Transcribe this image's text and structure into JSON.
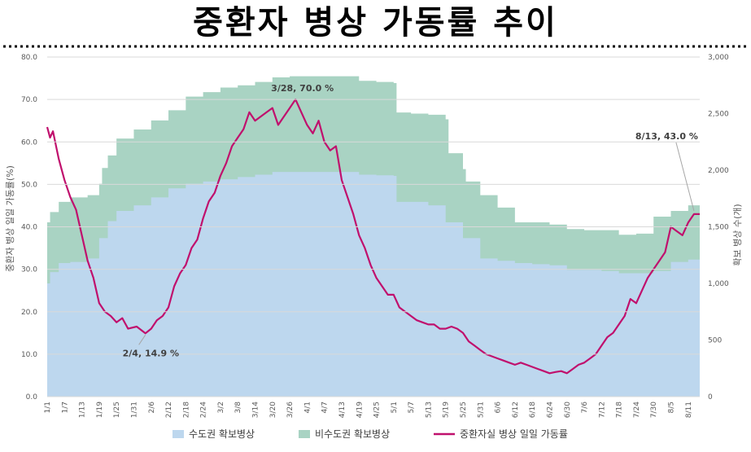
{
  "title": "중환자 병상 가동률 추이",
  "chart_data": {
    "type": "area+line",
    "ylabel_left": "중환자 병상 일일 가동률(%)",
    "ylabel_right": "확보 병상 수(개)",
    "ylim_left": [
      0,
      80
    ],
    "ylim_right": [
      0,
      3000
    ],
    "yticks_left": [
      "0.0",
      "10.0",
      "20.0",
      "30.0",
      "40.0",
      "50.0",
      "60.0",
      "70.0",
      "80.0"
    ],
    "yticks_right": [
      "0",
      "500",
      "1,000",
      "1,500",
      "2,000",
      "2,500",
      "3,000"
    ],
    "xticks": [
      "1/1",
      "1/7",
      "1/13",
      "1/19",
      "1/25",
      "1/31",
      "2/6",
      "2/12",
      "2/18",
      "2/24",
      "3/2",
      "3/8",
      "3/14",
      "3/20",
      "3/26",
      "4/1",
      "4/7",
      "4/13",
      "4/19",
      "4/25",
      "5/1",
      "5/7",
      "5/13",
      "5/19",
      "5/25",
      "5/31",
      "6/6",
      "6/12",
      "6/18",
      "6/24",
      "6/30",
      "7/6",
      "7/12",
      "7/18",
      "7/24",
      "7/30",
      "8/5",
      "8/11"
    ],
    "legend": [
      "수도권 확보병상",
      "비수도권 확보병상",
      "중환자실 병상 일일 가동률"
    ],
    "colors": {
      "capital": "#bdd7ee",
      "noncapital": "#a9d3c3",
      "line": "#c0106d"
    },
    "capital_beds": [
      [
        "1/1",
        1000
      ],
      [
        "1/2",
        1100
      ],
      [
        "1/5",
        1180
      ],
      [
        "1/9",
        1190
      ],
      [
        "1/15",
        1220
      ],
      [
        "1/19",
        1400
      ],
      [
        "1/22",
        1550
      ],
      [
        "1/25",
        1640
      ],
      [
        "1/31",
        1690
      ],
      [
        "2/6",
        1760
      ],
      [
        "2/12",
        1840
      ],
      [
        "2/18",
        1880
      ],
      [
        "2/24",
        1900
      ],
      [
        "3/2",
        1920
      ],
      [
        "3/8",
        1940
      ],
      [
        "3/14",
        1960
      ],
      [
        "3/20",
        1985
      ],
      [
        "3/26",
        1985
      ],
      [
        "4/1",
        1985
      ],
      [
        "4/7",
        1985
      ],
      [
        "4/13",
        1985
      ],
      [
        "4/19",
        1960
      ],
      [
        "4/25",
        1955
      ],
      [
        "5/1",
        1950
      ],
      [
        "5/2",
        1720
      ],
      [
        "5/7",
        1720
      ],
      [
        "5/13",
        1690
      ],
      [
        "5/19",
        1540
      ],
      [
        "5/25",
        1400
      ],
      [
        "5/31",
        1220
      ],
      [
        "6/6",
        1200
      ],
      [
        "6/12",
        1180
      ],
      [
        "6/18",
        1170
      ],
      [
        "6/24",
        1160
      ],
      [
        "6/30",
        1120
      ],
      [
        "7/6",
        1120
      ],
      [
        "7/12",
        1110
      ],
      [
        "7/18",
        1090
      ],
      [
        "7/24",
        1090
      ],
      [
        "7/30",
        1110
      ],
      [
        "8/5",
        1190
      ],
      [
        "8/11",
        1210
      ],
      [
        "8/15",
        1220
      ]
    ],
    "total_beds": [
      [
        "1/1",
        1540
      ],
      [
        "1/2",
        1630
      ],
      [
        "1/5",
        1720
      ],
      [
        "1/9",
        1760
      ],
      [
        "1/15",
        1780
      ],
      [
        "1/19",
        1880
      ],
      [
        "1/20",
        2020
      ],
      [
        "1/22",
        2130
      ],
      [
        "1/25",
        2280
      ],
      [
        "1/31",
        2360
      ],
      [
        "2/6",
        2440
      ],
      [
        "2/12",
        2530
      ],
      [
        "2/18",
        2650
      ],
      [
        "2/24",
        2690
      ],
      [
        "3/2",
        2730
      ],
      [
        "3/8",
        2750
      ],
      [
        "3/14",
        2780
      ],
      [
        "3/20",
        2820
      ],
      [
        "3/26",
        2830
      ],
      [
        "4/1",
        2830
      ],
      [
        "4/7",
        2830
      ],
      [
        "4/13",
        2830
      ],
      [
        "4/19",
        2790
      ],
      [
        "4/25",
        2780
      ],
      [
        "5/1",
        2770
      ],
      [
        "5/2",
        2510
      ],
      [
        "5/7",
        2500
      ],
      [
        "5/13",
        2490
      ],
      [
        "5/19",
        2450
      ],
      [
        "5/20",
        2150
      ],
      [
        "5/25",
        2010
      ],
      [
        "5/26",
        1900
      ],
      [
        "5/31",
        1780
      ],
      [
        "6/6",
        1670
      ],
      [
        "6/12",
        1540
      ],
      [
        "6/18",
        1540
      ],
      [
        "6/24",
        1520
      ],
      [
        "6/30",
        1480
      ],
      [
        "7/6",
        1470
      ],
      [
        "7/12",
        1470
      ],
      [
        "7/18",
        1430
      ],
      [
        "7/24",
        1440
      ],
      [
        "7/30",
        1590
      ],
      [
        "8/5",
        1640
      ],
      [
        "8/11",
        1690
      ],
      [
        "8/15",
        1790
      ]
    ],
    "occupancy_rate": [
      [
        "1/1",
        63.5
      ],
      [
        "1/2",
        61.0
      ],
      [
        "1/3",
        62.5
      ],
      [
        "1/5",
        56
      ],
      [
        "1/7",
        51
      ],
      [
        "1/9",
        47
      ],
      [
        "1/11",
        44
      ],
      [
        "1/13",
        38
      ],
      [
        "1/15",
        32
      ],
      [
        "1/17",
        28
      ],
      [
        "1/19",
        22
      ],
      [
        "1/21",
        20
      ],
      [
        "1/23",
        19
      ],
      [
        "1/25",
        17.5
      ],
      [
        "1/27",
        18.5
      ],
      [
        "1/29",
        16
      ],
      [
        "2/1",
        16.5
      ],
      [
        "2/4",
        14.9
      ],
      [
        "2/6",
        16
      ],
      [
        "2/8",
        18
      ],
      [
        "2/10",
        19
      ],
      [
        "2/12",
        21
      ],
      [
        "2/14",
        26
      ],
      [
        "2/16",
        29
      ],
      [
        "2/18",
        31
      ],
      [
        "2/20",
        35
      ],
      [
        "2/22",
        37
      ],
      [
        "2/24",
        42
      ],
      [
        "2/26",
        46
      ],
      [
        "2/28",
        48
      ],
      [
        "3/2",
        52
      ],
      [
        "3/4",
        55
      ],
      [
        "3/6",
        59
      ],
      [
        "3/8",
        61
      ],
      [
        "3/10",
        63
      ],
      [
        "3/12",
        67
      ],
      [
        "3/14",
        65
      ],
      [
        "3/16",
        66
      ],
      [
        "3/18",
        67
      ],
      [
        "3/20",
        68
      ],
      [
        "3/22",
        64
      ],
      [
        "3/24",
        66
      ],
      [
        "3/26",
        68
      ],
      [
        "3/28",
        70.0
      ],
      [
        "3/30",
        67
      ],
      [
        "4/1",
        64
      ],
      [
        "4/3",
        62
      ],
      [
        "4/5",
        65
      ],
      [
        "4/7",
        60
      ],
      [
        "4/9",
        58
      ],
      [
        "4/11",
        59
      ],
      [
        "4/13",
        51
      ],
      [
        "4/15",
        47
      ],
      [
        "4/17",
        43
      ],
      [
        "4/19",
        38
      ],
      [
        "4/21",
        35
      ],
      [
        "4/23",
        31
      ],
      [
        "4/25",
        28
      ],
      [
        "4/27",
        26
      ],
      [
        "4/29",
        24
      ],
      [
        "5/1",
        24
      ],
      [
        "5/3",
        21
      ],
      [
        "5/5",
        20
      ],
      [
        "5/7",
        19
      ],
      [
        "5/9",
        18
      ],
      [
        "5/11",
        17.5
      ],
      [
        "5/13",
        17
      ],
      [
        "5/15",
        17
      ],
      [
        "5/17",
        16
      ],
      [
        "5/19",
        16
      ],
      [
        "5/21",
        16.5
      ],
      [
        "5/23",
        16
      ],
      [
        "5/25",
        15
      ],
      [
        "5/27",
        13
      ],
      [
        "5/29",
        12
      ],
      [
        "5/31",
        11
      ],
      [
        "6/2",
        10
      ],
      [
        "6/4",
        9.5
      ],
      [
        "6/6",
        9
      ],
      [
        "6/8",
        8.5
      ],
      [
        "6/10",
        8
      ],
      [
        "6/12",
        7.5
      ],
      [
        "6/14",
        8
      ],
      [
        "6/16",
        7.5
      ],
      [
        "6/18",
        7
      ],
      [
        "6/20",
        6.5
      ],
      [
        "6/22",
        6
      ],
      [
        "6/24",
        5.5
      ],
      [
        "6/26",
        5.8
      ],
      [
        "6/28",
        6
      ],
      [
        "6/30",
        5.5
      ],
      [
        "7/2",
        6.5
      ],
      [
        "7/4",
        7.5
      ],
      [
        "7/6",
        8
      ],
      [
        "7/8",
        9
      ],
      [
        "7/10",
        10
      ],
      [
        "7/12",
        12
      ],
      [
        "7/14",
        14
      ],
      [
        "7/16",
        15
      ],
      [
        "7/18",
        17
      ],
      [
        "7/20",
        19
      ],
      [
        "7/22",
        23
      ],
      [
        "7/24",
        22
      ],
      [
        "7/26",
        25
      ],
      [
        "7/28",
        28
      ],
      [
        "7/30",
        30
      ],
      [
        "8/1",
        32
      ],
      [
        "8/3",
        34
      ],
      [
        "8/5",
        40
      ],
      [
        "8/7",
        39
      ],
      [
        "8/9",
        38
      ],
      [
        "8/11",
        41
      ],
      [
        "8/13",
        43.0
      ],
      [
        "8/15",
        43
      ]
    ],
    "annotations": [
      {
        "date": "2/4",
        "value": 14.9,
        "text": "2/4, 14.9 %"
      },
      {
        "date": "3/28",
        "value": 70.0,
        "text": "3/28, 70.0 %"
      },
      {
        "date": "8/13",
        "value": 43.0,
        "text": "8/13, 43.0 %"
      }
    ]
  }
}
